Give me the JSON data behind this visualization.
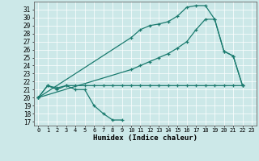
{
  "xlabel": "Humidex (Indice chaleur)",
  "bg_color": "#cce8e8",
  "line_color": "#1a7a6e",
  "xlim": [
    -0.5,
    23.5
  ],
  "ylim": [
    16.5,
    32.0
  ],
  "xticks": [
    0,
    1,
    2,
    3,
    4,
    5,
    6,
    7,
    8,
    9,
    10,
    11,
    12,
    13,
    14,
    15,
    16,
    17,
    18,
    19,
    20,
    21,
    22,
    23
  ],
  "yticks": [
    17,
    18,
    19,
    20,
    21,
    22,
    23,
    24,
    25,
    26,
    27,
    28,
    29,
    30,
    31
  ],
  "line1_x": [
    0,
    1,
    2,
    3,
    4,
    5,
    6,
    7,
    8,
    9
  ],
  "line1_y": [
    20.0,
    21.5,
    21.0,
    21.5,
    21.0,
    21.0,
    19.0,
    18.0,
    17.2,
    17.2
  ],
  "line2_x": [
    0,
    1,
    2,
    3,
    4,
    5,
    6,
    7,
    8,
    9,
    10,
    11,
    12,
    13,
    14,
    15,
    16,
    17,
    18,
    19,
    20,
    21,
    22
  ],
  "line2_y": [
    20.0,
    21.5,
    21.2,
    21.5,
    21.5,
    21.5,
    21.5,
    21.5,
    21.5,
    21.5,
    21.5,
    21.5,
    21.5,
    21.5,
    21.5,
    21.5,
    21.5,
    21.5,
    21.5,
    21.5,
    21.5,
    21.5,
    21.5
  ],
  "line3_x": [
    0,
    10,
    11,
    12,
    13,
    14,
    15,
    16,
    17,
    18,
    19,
    20,
    21,
    22
  ],
  "line3_y": [
    20.0,
    27.5,
    28.5,
    29.0,
    29.2,
    29.5,
    30.2,
    31.3,
    31.5,
    31.5,
    29.8,
    25.8,
    25.2,
    21.5
  ],
  "line4_x": [
    0,
    10,
    11,
    12,
    13,
    14,
    15,
    16,
    17,
    18,
    19,
    20,
    21,
    22
  ],
  "line4_y": [
    20.0,
    23.5,
    24.0,
    24.5,
    25.0,
    25.5,
    26.2,
    27.0,
    28.5,
    29.8,
    29.8,
    25.8,
    25.2,
    21.5
  ]
}
